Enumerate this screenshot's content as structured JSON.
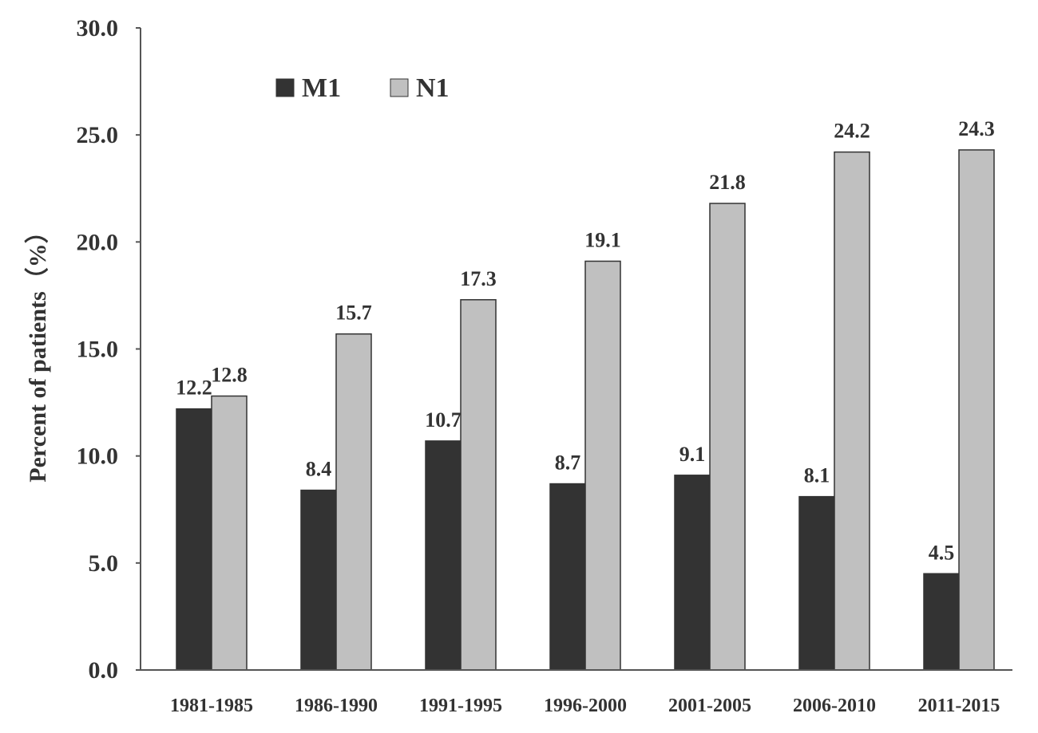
{
  "chart_data": {
    "type": "bar",
    "categories": [
      "1981-1985",
      "1986-1990",
      "1991-1995",
      "1996-2000",
      "2001-2005",
      "2006-2010",
      "2011-2015"
    ],
    "series": [
      {
        "name": "M1",
        "values": [
          12.2,
          8.4,
          10.7,
          8.7,
          9.1,
          8.1,
          4.5
        ],
        "color": "#333333"
      },
      {
        "name": "N1",
        "values": [
          12.8,
          15.7,
          17.3,
          19.1,
          21.8,
          24.2,
          24.3
        ],
        "color": "#c0c0c0"
      }
    ],
    "data_labels": {
      "M1": [
        "12.2",
        "8.4",
        "10.7",
        "8.7",
        "9.1",
        "8.1",
        "4.5"
      ],
      "N1": [
        "12.8",
        "15.7",
        "17.3",
        "19.1",
        "21.8",
        "24.2",
        "24.3"
      ]
    },
    "title": "",
    "xlabel": "",
    "ylabel": "Percent of patients（%）",
    "ylim": [
      0,
      30
    ],
    "yticks": [
      "0.0",
      "5.0",
      "10.0",
      "15.0",
      "20.0",
      "25.0",
      "30.0"
    ],
    "grid": false,
    "legend_position": "top-left"
  }
}
